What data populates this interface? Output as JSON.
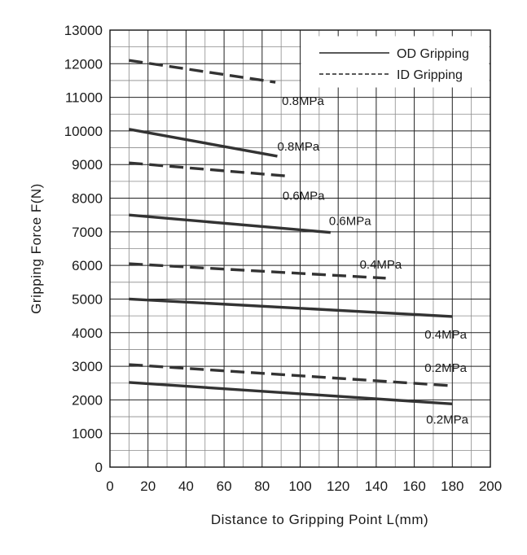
{
  "chart_data": {
    "type": "line",
    "xlabel": "Distance to Gripping Point  L(mm)",
    "ylabel": "Gripping Force  F(N)",
    "xlim": [
      0,
      200
    ],
    "ylim": [
      0,
      13000
    ],
    "x_ticks": [
      0,
      20,
      40,
      60,
      80,
      100,
      120,
      140,
      160,
      180,
      200
    ],
    "y_ticks": [
      0,
      1000,
      2000,
      3000,
      4000,
      5000,
      6000,
      7000,
      8000,
      9000,
      10000,
      11000,
      12000,
      13000
    ],
    "grid": true,
    "minor_grid": true,
    "legend_position": "top-right",
    "legend": [
      {
        "label": "OD Gripping",
        "style": "solid"
      },
      {
        "label": "ID Gripping",
        "style": "dashed"
      }
    ],
    "series_color": "#333333",
    "series": [
      {
        "label": "0.8MPa",
        "style": "dashed",
        "x": [
          10,
          87
        ],
        "y": [
          12100,
          11450
        ]
      },
      {
        "label": "0.8MPa",
        "style": "solid",
        "x": [
          10,
          88
        ],
        "y": [
          10050,
          9250
        ]
      },
      {
        "label": "0.6MPa",
        "style": "dashed",
        "x": [
          10,
          95
        ],
        "y": [
          9050,
          8650
        ]
      },
      {
        "label": "0.6MPa",
        "style": "solid",
        "x": [
          10,
          116
        ],
        "y": [
          7500,
          6980
        ]
      },
      {
        "label": "0.4MPa",
        "style": "dashed",
        "x": [
          10,
          145
        ],
        "y": [
          6050,
          5620
        ]
      },
      {
        "label": "0.4MPa",
        "style": "solid",
        "x": [
          10,
          180
        ],
        "y": [
          5000,
          4480
        ]
      },
      {
        "label": "0.2MPa",
        "style": "dashed",
        "x": [
          10,
          180
        ],
        "y": [
          3050,
          2420
        ]
      },
      {
        "label": "0.2MPa",
        "style": "solid",
        "x": [
          10,
          180
        ],
        "y": [
          2520,
          1880
        ]
      }
    ]
  }
}
